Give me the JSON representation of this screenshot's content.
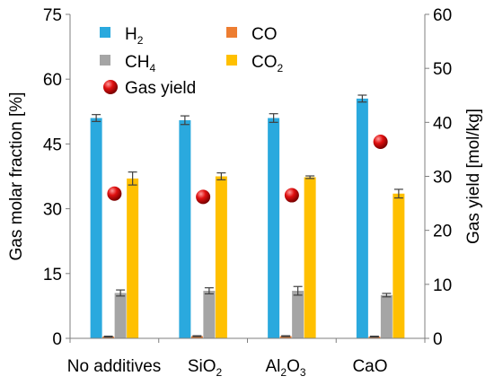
{
  "chart_data": {
    "type": "bar",
    "categories": [
      "No additives",
      "SiO2",
      "Al2O3",
      "CaO"
    ],
    "category_labels": [
      {
        "base": "No additives",
        "sub": ""
      },
      {
        "base": "SiO",
        "sub": "2"
      },
      {
        "base": "Al",
        "sub": "2",
        "base2": "O",
        "sub2": "3"
      },
      {
        "base": "CaO",
        "sub": ""
      }
    ],
    "y_left": {
      "label": "Gas molar fraction [%]",
      "lim": [
        0,
        75
      ],
      "ticks": [
        0,
        15,
        30,
        45,
        60,
        75
      ]
    },
    "y_right": {
      "label": "Gas yield [mol/kg]",
      "lim": [
        0,
        60
      ],
      "ticks": [
        0,
        10,
        20,
        30,
        40,
        50,
        60
      ]
    },
    "series": [
      {
        "name": "H2",
        "label_base": "H",
        "label_sub": "2",
        "color": "#2aa9de",
        "axis": "left",
        "values": [
          51,
          50.5,
          51,
          55.5
        ],
        "errors": [
          0.8,
          1.0,
          1.0,
          0.8
        ]
      },
      {
        "name": "CO",
        "label_base": "CO",
        "label_sub": "",
        "color": "#ed7d31",
        "axis": "left",
        "values": [
          0.4,
          0.5,
          0.5,
          0.4
        ],
        "errors": [
          0.1,
          0.1,
          0.1,
          0.1
        ]
      },
      {
        "name": "CH4",
        "label_base": "CH",
        "label_sub": "4",
        "color": "#a5a5a5",
        "axis": "left",
        "values": [
          10.5,
          11,
          11,
          10
        ],
        "errors": [
          0.7,
          0.7,
          1.0,
          0.4
        ]
      },
      {
        "name": "CO2",
        "label_base": "CO",
        "label_sub": "2",
        "color": "#ffc000",
        "axis": "left",
        "values": [
          37,
          37.5,
          37.3,
          33.5
        ],
        "errors": [
          1.5,
          0.8,
          0.3,
          1.0
        ]
      }
    ],
    "scatter": {
      "name": "Gas yield",
      "color": "#e01010",
      "axis": "right",
      "values": [
        26.8,
        26.2,
        26.5,
        36.4
      ]
    },
    "legend": {
      "position": "top-left"
    },
    "grid": false
  }
}
